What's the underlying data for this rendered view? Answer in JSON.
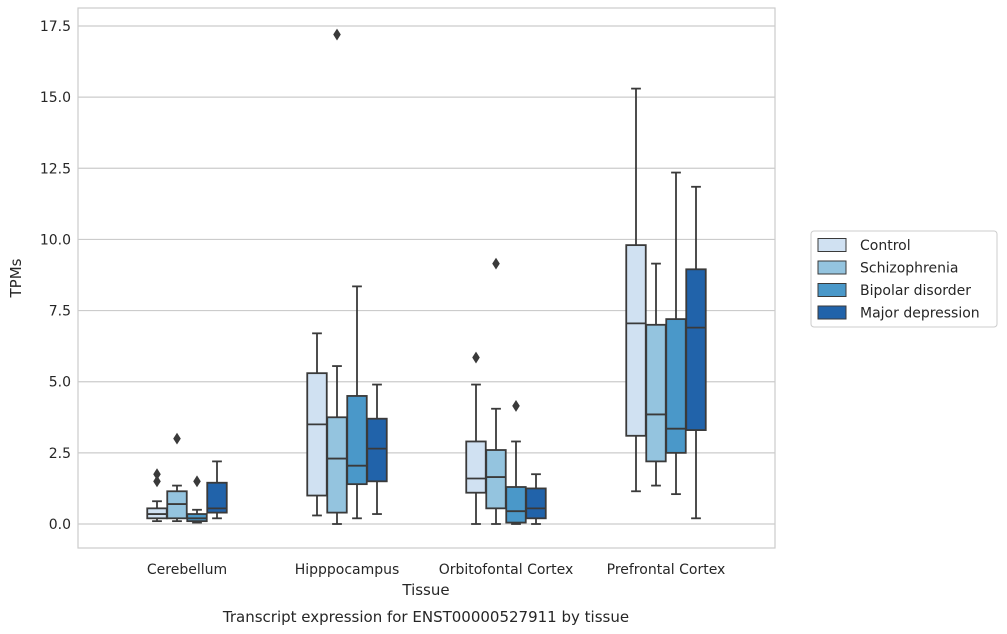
{
  "caption": "Transcript expression for ENST00000527911 by tissue",
  "chart_data": {
    "type": "box",
    "xlabel": "Tissue",
    "ylabel": "TPMs",
    "ylim": [
      -0.8,
      18.1
    ],
    "yticks": [
      0.0,
      2.5,
      5.0,
      7.5,
      10.0,
      12.5,
      15.0,
      17.5
    ],
    "ytick_labels": [
      "0.0",
      "2.5",
      "5.0",
      "7.5",
      "10.0",
      "12.5",
      "15.0",
      "17.5"
    ],
    "grid": "horizontal",
    "legend_position": "right",
    "categories": [
      "Cerebellum",
      "Hipppocampus",
      "Orbitofontal Cortex",
      "Prefrontal Cortex"
    ],
    "series": [
      {
        "name": "Control",
        "color": "#d0e1f2",
        "boxes": [
          {
            "whisker_low": 0.1,
            "q1": 0.2,
            "median": 0.35,
            "q3": 0.55,
            "whisker_high": 0.8,
            "outliers": [
              1.5,
              1.75
            ]
          },
          {
            "whisker_low": 0.3,
            "q1": 1.0,
            "median": 3.5,
            "q3": 5.3,
            "whisker_high": 6.7,
            "outliers": []
          },
          {
            "whisker_low": 0.0,
            "q1": 1.1,
            "median": 1.6,
            "q3": 2.9,
            "whisker_high": 4.9,
            "outliers": [
              5.85
            ]
          },
          {
            "whisker_low": 1.15,
            "q1": 3.1,
            "median": 7.05,
            "q3": 9.8,
            "whisker_high": 15.3,
            "outliers": []
          }
        ]
      },
      {
        "name": "Schizophrenia",
        "color": "#94c4df",
        "boxes": [
          {
            "whisker_low": 0.1,
            "q1": 0.2,
            "median": 0.7,
            "q3": 1.15,
            "whisker_high": 1.35,
            "outliers": [
              3.0
            ]
          },
          {
            "whisker_low": 0.0,
            "q1": 0.4,
            "median": 2.3,
            "q3": 3.75,
            "whisker_high": 5.55,
            "outliers": [
              17.2
            ]
          },
          {
            "whisker_low": 0.0,
            "q1": 0.55,
            "median": 1.65,
            "q3": 2.6,
            "whisker_high": 4.05,
            "outliers": [
              9.15
            ]
          },
          {
            "whisker_low": 1.35,
            "q1": 2.2,
            "median": 3.85,
            "q3": 7.0,
            "whisker_high": 9.15,
            "outliers": []
          }
        ]
      },
      {
        "name": "Bipolar disorder",
        "color": "#4a98c9",
        "boxes": [
          {
            "whisker_low": 0.05,
            "q1": 0.1,
            "median": 0.2,
            "q3": 0.35,
            "whisker_high": 0.5,
            "outliers": [
              1.5
            ]
          },
          {
            "whisker_low": 0.2,
            "q1": 1.4,
            "median": 2.05,
            "q3": 4.5,
            "whisker_high": 8.35,
            "outliers": []
          },
          {
            "whisker_low": 0.0,
            "q1": 0.05,
            "median": 0.45,
            "q3": 1.3,
            "whisker_high": 2.9,
            "outliers": [
              4.15
            ]
          },
          {
            "whisker_low": 1.05,
            "q1": 2.5,
            "median": 3.35,
            "q3": 7.2,
            "whisker_high": 12.35,
            "outliers": []
          }
        ]
      },
      {
        "name": "Major depression",
        "color": "#2163aa",
        "boxes": [
          {
            "whisker_low": 0.2,
            "q1": 0.4,
            "median": 0.55,
            "q3": 1.45,
            "whisker_high": 2.2,
            "outliers": []
          },
          {
            "whisker_low": 0.35,
            "q1": 1.5,
            "median": 2.65,
            "q3": 3.7,
            "whisker_high": 4.9,
            "outliers": []
          },
          {
            "whisker_low": 0.0,
            "q1": 0.2,
            "median": 0.55,
            "q3": 1.25,
            "whisker_high": 1.75,
            "outliers": []
          },
          {
            "whisker_low": 0.2,
            "q1": 3.3,
            "median": 6.9,
            "q3": 8.95,
            "whisker_high": 11.85,
            "outliers": []
          }
        ]
      }
    ]
  }
}
